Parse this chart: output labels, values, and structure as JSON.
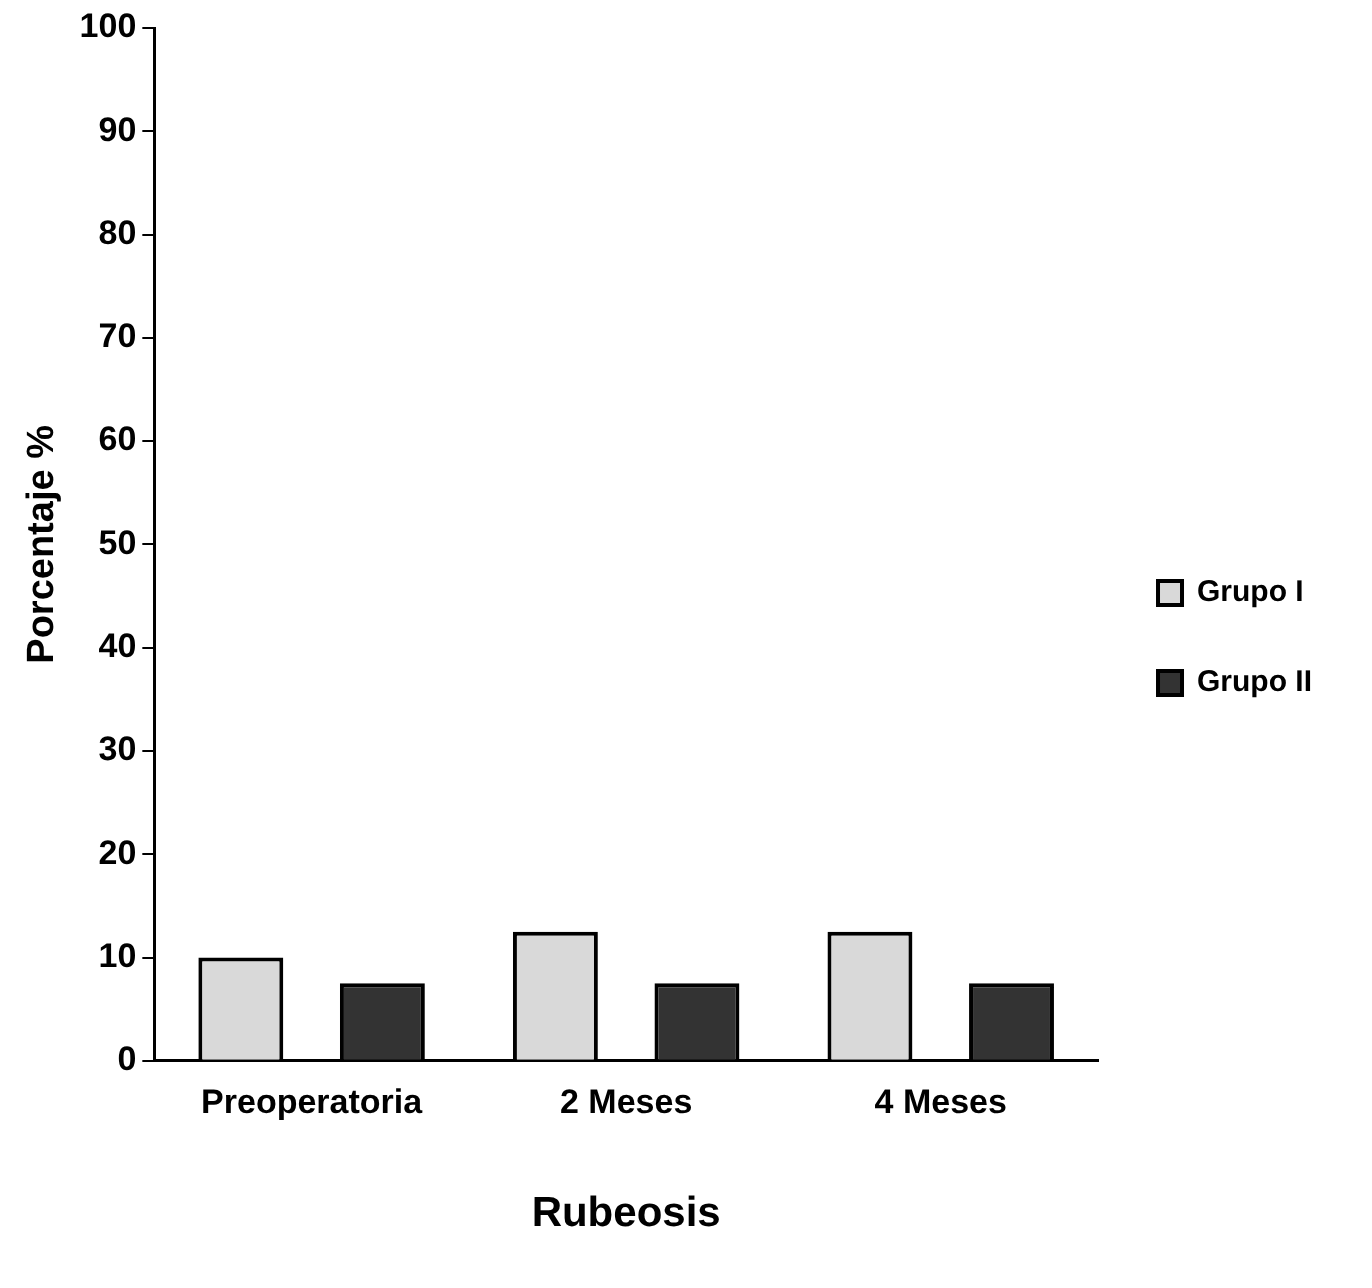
{
  "chart_data": {
    "type": "bar",
    "xlabel": "Rubeosis",
    "ylabel": "Porcentaje %",
    "categories": [
      "Preoperatoria",
      "2 Meses",
      "4 Meses"
    ],
    "series": [
      {
        "name": "Grupo I",
        "color": "#d9d9d9",
        "values": [
          10,
          12.5,
          12.5
        ]
      },
      {
        "name": "Grupo II",
        "color": "#333333",
        "values": [
          7.5,
          7.5,
          7.5
        ]
      }
    ],
    "ylim": [
      0,
      100
    ],
    "yticks": [
      0,
      10,
      20,
      30,
      40,
      50,
      60,
      70,
      80,
      90,
      100
    ],
    "grid": false,
    "legend": "right"
  }
}
